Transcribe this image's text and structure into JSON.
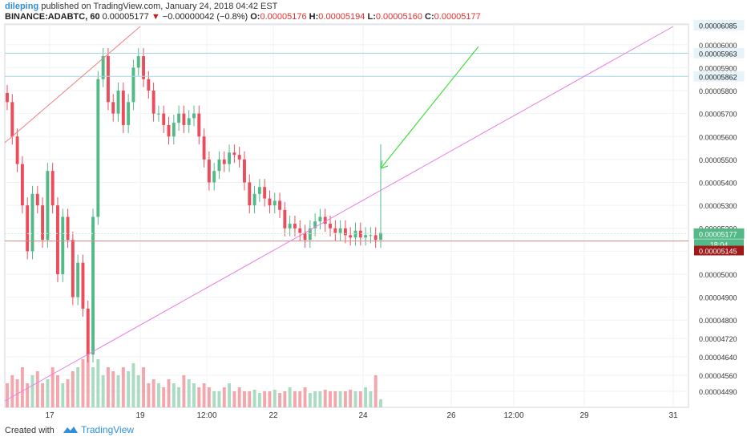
{
  "header": {
    "author": "dileping",
    "published": "published on TradingView.com, January 24, 2018 04:42 EST",
    "symbol": "BINANCE:ADABTC, 60",
    "last": "0.00005177",
    "change_arrow": "▼",
    "change": "−0.00000042 (−0.8%)",
    "o_label": "O:",
    "o_value": "0.00005176",
    "h_label": "H:",
    "h_value": "0.00005194",
    "l_label": "L:",
    "l_value": "0.00005160",
    "c_label": "C:",
    "c_value": "0.00005177"
  },
  "footer": {
    "created": "Created with",
    "brand": "TradingView",
    "brand_icon": "tradingview-logo-icon"
  },
  "chart_data": {
    "type": "candlestick",
    "ylim": [
      4.42e-05,
      6.09e-05
    ],
    "y_ticks": [
      "0.00006085",
      "0.00006000",
      "0.00005900",
      "0.00005800",
      "0.00005700",
      "0.00005600",
      "0.00005500",
      "0.00005400",
      "0.00005300",
      "0.00005200",
      "0.00005100",
      "0.00005000",
      "0.00004900",
      "0.00004800",
      "0.00004720",
      "0.00004640",
      "0.00004560",
      "0.00004490"
    ],
    "x_ticks": [
      "17",
      "19",
      "12:00",
      "22",
      "24",
      "26",
      "12:00",
      "29",
      "31"
    ],
    "price_labels": {
      "top": "0.00006085",
      "line_upper": "0.00005963",
      "line_lower": "0.00005862",
      "current": "0.00005177",
      "countdown": "18:04",
      "red_line": "0.00005145"
    },
    "colors": {
      "up": "#53b987",
      "down": "#eb4d5c",
      "vol_up": "#a9dcc3",
      "vol_down": "#f4a6ad",
      "trend_pink": "#e87de8",
      "trend_red": "#f08080",
      "arrow": "#44dd44",
      "hline": "#9fd6e6"
    },
    "series": {
      "close": [
        5.75e-05,
        5.6e-05,
        5.48e-05,
        5.3e-05,
        5.1e-05,
        5.35e-05,
        5.3e-05,
        5.15e-05,
        5.45e-05,
        5.3e-05,
        5e-05,
        5.25e-05,
        5.15e-05,
        4.9e-05,
        5.05e-05,
        4.85e-05,
        4.65e-05,
        5.25e-05,
        5.85e-05,
        5.95e-05,
        5.75e-05,
        5.7e-05,
        5.8e-05,
        5.65e-05,
        5.75e-05,
        5.9e-05,
        5.95e-05,
        5.85e-05,
        5.8e-05,
        5.7e-05,
        5.7e-05,
        5.65e-05,
        5.6e-05,
        5.66e-05,
        5.7e-05,
        5.65e-05,
        5.68e-05,
        5.7e-05,
        5.6e-05,
        5.5e-05,
        5.4e-05,
        5.45e-05,
        5.5e-05,
        5.48e-05,
        5.53e-05,
        5.52e-05,
        5.5e-05,
        5.4e-05,
        5.3e-05,
        5.35e-05,
        5.38e-05,
        5.33e-05,
        5.3e-05,
        5.32e-05,
        5.28e-05,
        5.2e-05,
        5.22e-05,
        5.2e-05,
        5.18e-05,
        5.15e-05,
        5.2e-05,
        5.23e-05,
        5.25e-05,
        5.22e-05,
        5.2e-05,
        5.18e-05,
        5.2e-05,
        5.17e-05,
        5.16e-05,
        5.19e-05,
        5.16e-05,
        5.17e-05,
        5.17e-05,
        5.15e-05,
        5.18e-05
      ],
      "volume": [
        0.3,
        0.4,
        0.35,
        0.5,
        0.3,
        0.4,
        0.45,
        0.3,
        0.35,
        0.5,
        0.4,
        0.3,
        0.35,
        0.45,
        0.5,
        0.6,
        0.7,
        0.5,
        0.6,
        0.4,
        0.5,
        0.45,
        0.4,
        0.5,
        0.45,
        0.55,
        0.4,
        0.5,
        0.3,
        0.35,
        0.3,
        0.25,
        0.35,
        0.3,
        0.25,
        0.4,
        0.35,
        0.3,
        0.25,
        0.3,
        0.25,
        0.2,
        0.2,
        0.25,
        0.3,
        0.2,
        0.25,
        0.2,
        0.2,
        0.22,
        0.18,
        0.2,
        0.2,
        0.22,
        0.18,
        0.2,
        0.25,
        0.2,
        0.2,
        0.25,
        0.18,
        0.2,
        0.2,
        0.22,
        0.2,
        0.2,
        0.2,
        0.2,
        0.22,
        0.2,
        0.2,
        0.25,
        0.2,
        0.4,
        0.1
      ]
    }
  }
}
